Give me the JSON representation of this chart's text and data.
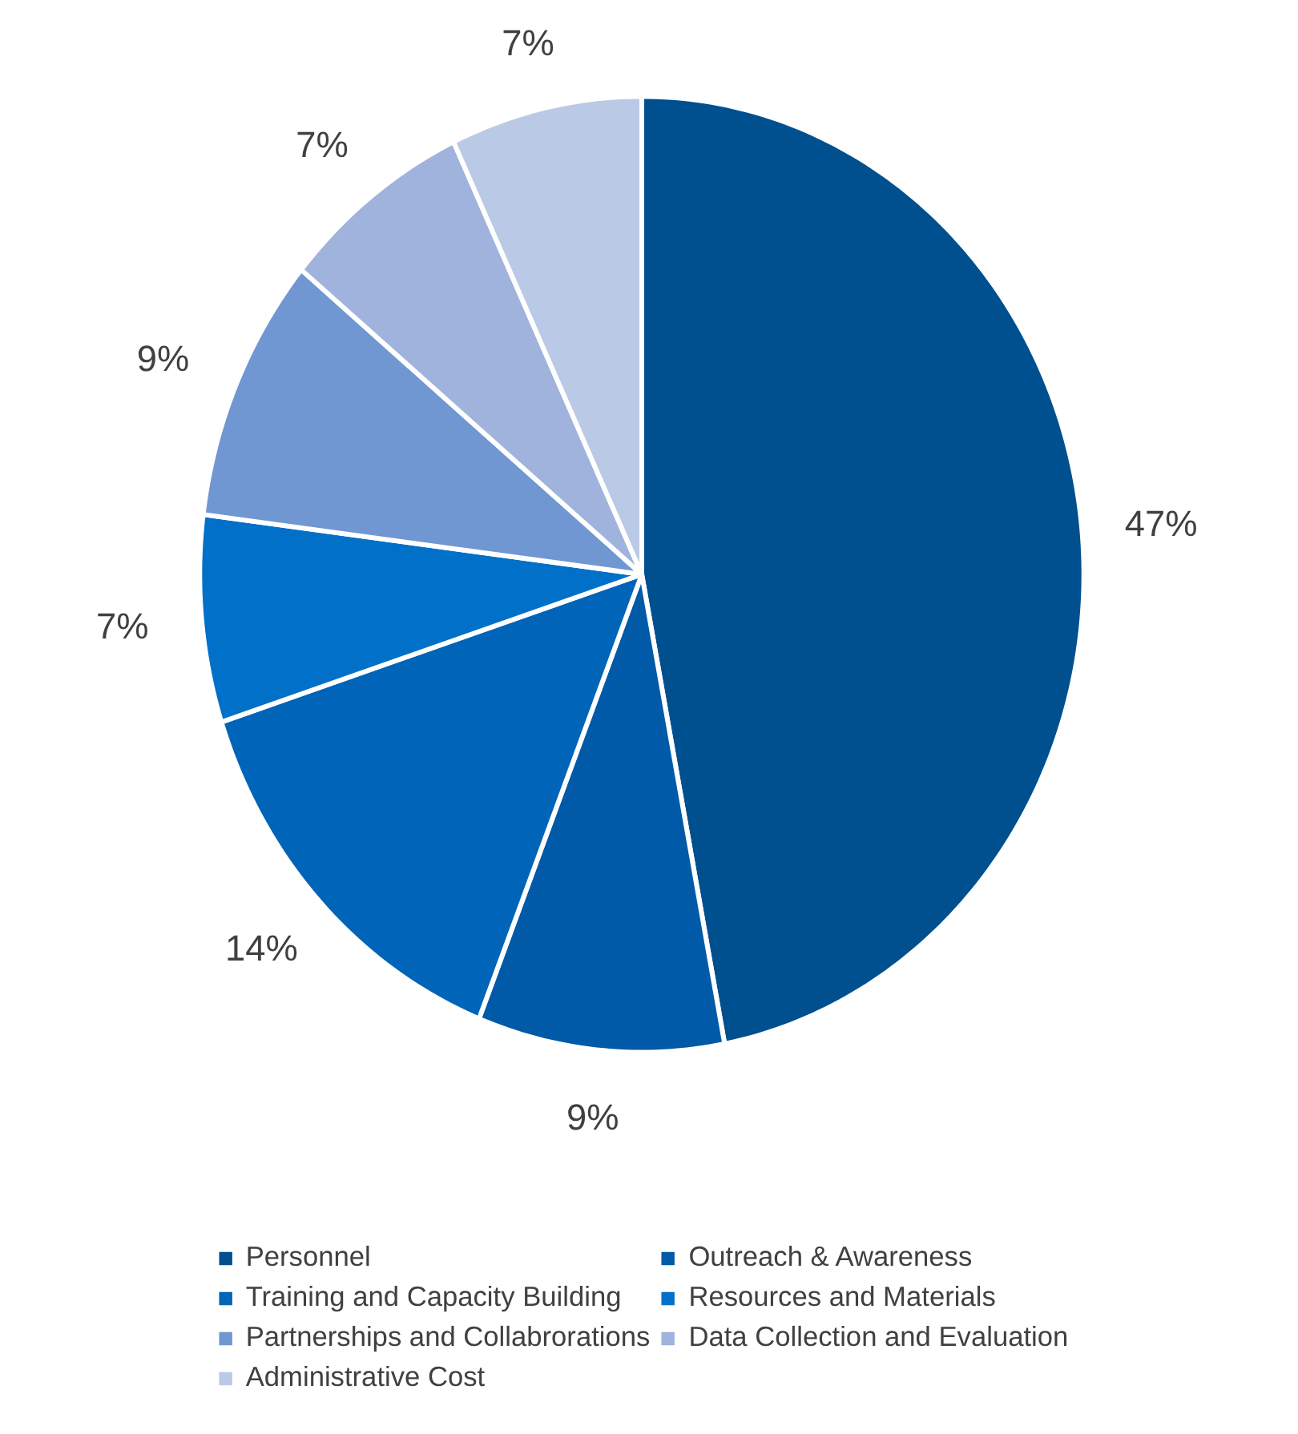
{
  "chart_data": {
    "type": "pie",
    "categories": [
      "Personnel",
      "Outreach & Awareness",
      "Training and Capacity Building",
      "Resources and Materials",
      "Partnerships and Collabrorations",
      "Data Collection and Evaluation",
      "Administrative Cost"
    ],
    "values": [
      47,
      9,
      14,
      7,
      9,
      7,
      7
    ],
    "value_labels": [
      "47%",
      "9%",
      "14%",
      "7%",
      "9%",
      "7%",
      "7%"
    ],
    "colors": [
      "#00508f",
      "#005aa8",
      "#0064b8",
      "#0070c8",
      "#7097d2",
      "#a0b3dc",
      "#bac9e5"
    ],
    "legend": "bottom"
  }
}
